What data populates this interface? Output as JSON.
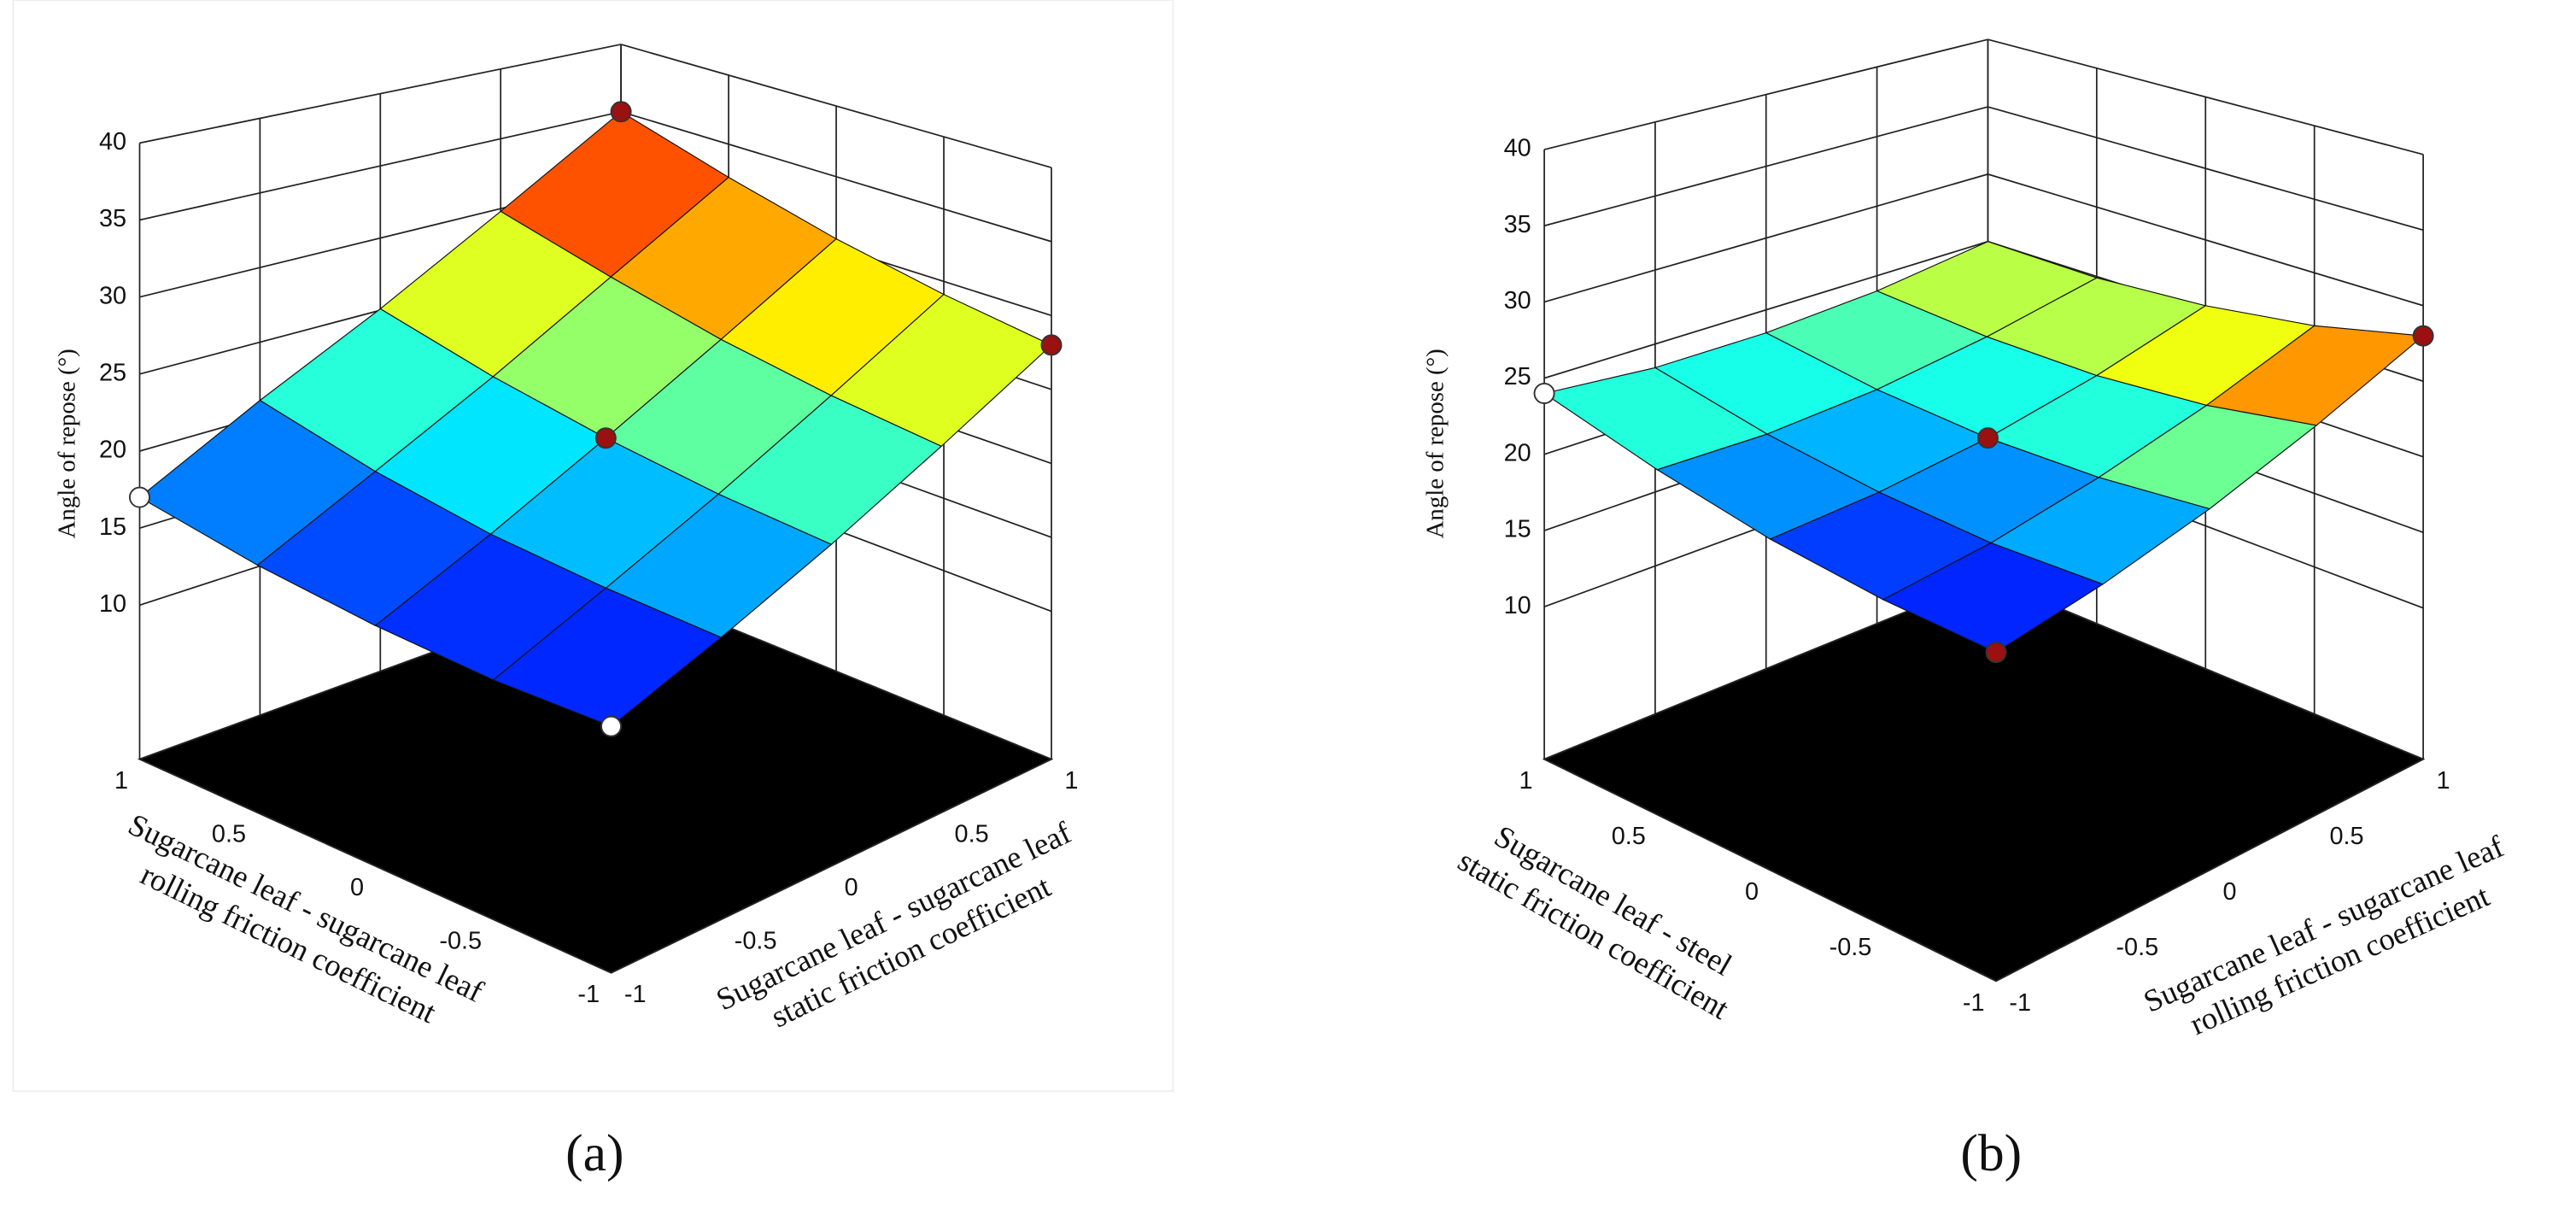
{
  "chart_data": [
    {
      "type": "surface",
      "zlabel": "Angle of repose (°)",
      "xlabel": [
        "Sugarcane leaf - sugarcane leaf",
        "rolling friction coefficient"
      ],
      "ylabel": [
        "Sugarcane leaf - sugarcane leaf",
        "static friction coefficient"
      ],
      "caption": "(a)",
      "x": [
        -1,
        -0.5,
        0,
        0.5,
        1
      ],
      "y": [
        -1,
        -0.5,
        0,
        0.5,
        1
      ],
      "z": [
        [
          15,
          14.8,
          15.1,
          15.8,
          17
        ],
        [
          17.6,
          17.8,
          18.3,
          19.4,
          21.1
        ],
        [
          20.6,
          21.1,
          22,
          23.3,
          25.1
        ],
        [
          24.1,
          24.9,
          26.1,
          27.8,
          29.8
        ],
        [
          28,
          29.1,
          30.6,
          32.6,
          35
        ]
      ],
      "xlim": [
        -1,
        1
      ],
      "ylim": [
        -1,
        1
      ],
      "zlim": [
        0,
        40
      ],
      "xticks": [
        -1,
        -0.5,
        0,
        0.5,
        1
      ],
      "yticks": [
        -1,
        -0.5,
        0,
        0.5,
        1
      ],
      "zticks": [
        10,
        15,
        20,
        25,
        30,
        35,
        40
      ],
      "colormap": "jet",
      "grid": true,
      "points": {
        "x": [
          1,
          1,
          -1,
          0,
          -1
        ],
        "y": [
          -1,
          1,
          1,
          0,
          -1
        ],
        "z": [
          17,
          35,
          28,
          22,
          15
        ],
        "colors": [
          "#ffffff",
          "#9b1010",
          "#9b1010",
          "#9b1010",
          "#ffffff"
        ]
      }
    },
    {
      "type": "surface",
      "zlabel": "Angle of repose (°)",
      "xlabel": [
        "Sugarcane leaf - steel",
        "static friction coefficient"
      ],
      "ylabel": [
        "Sugarcane leaf - sugarcane leaf",
        "rolling friction coefficient"
      ],
      "caption": "(b)",
      "x": [
        -1,
        -0.5,
        0,
        0.5,
        1
      ],
      "y": [
        -1,
        -0.5,
        0,
        0.5,
        1
      ],
      "z": [
        [
          20,
          20.2,
          20.9,
          22.2,
          24
        ],
        [
          21.2,
          20.9,
          21.2,
          22,
          23.4
        ],
        [
          22.9,
          22.2,
          22,
          22.4,
          23.4
        ],
        [
          25.2,
          24,
          23.4,
          23.4,
          23.9
        ],
        [
          28,
          26.4,
          25.4,
          24.9,
          25
        ]
      ],
      "xlim": [
        -1,
        1
      ],
      "ylim": [
        -1,
        1
      ],
      "zlim": [
        0,
        40
      ],
      "xticks": [
        -1,
        -0.5,
        0,
        0.5,
        1
      ],
      "yticks": [
        -1,
        -0.5,
        0,
        0.5,
        1
      ],
      "zticks": [
        10,
        15,
        20,
        25,
        30,
        35,
        40
      ],
      "colormap": "jet",
      "grid": true,
      "points": {
        "x": [
          1,
          -1,
          0,
          -1
        ],
        "y": [
          -1,
          1,
          0,
          -1
        ],
        "z": [
          24,
          28,
          22,
          20
        ],
        "colors": [
          "#ffffff",
          "#9b1010",
          "#9b1010",
          "#9b1010"
        ]
      }
    }
  ]
}
